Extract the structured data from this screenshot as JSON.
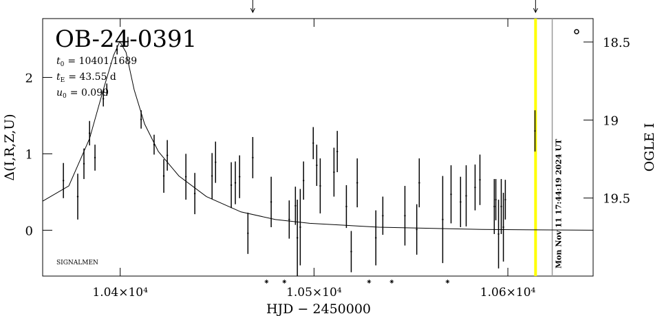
{
  "chart_data": {
    "type": "scatter",
    "title": "OB-24-0391",
    "params": [
      {
        "symbol": "t",
        "sub": "0",
        "text": "= 10401.1689"
      },
      {
        "symbol": "t",
        "sub": "E",
        "text": "= 43.55 d"
      },
      {
        "symbol": "u",
        "sub": "0",
        "text": "= 0.099"
      }
    ],
    "note": "SIGNALMEN",
    "timestamp": "Mon Nov 11 17:44:19 2024 UT",
    "xlabel": "HJD − 2450000",
    "ylabel": "Δ(I,R,Z,U)",
    "y2label": "OGLE I",
    "xlim": [
      10360,
      10644
    ],
    "ylim": [
      -0.6,
      2.77
    ],
    "y2lim": [
      18.35,
      20.0
    ],
    "xticks": [
      {
        "value": 10400,
        "label": "1.04×10⁴"
      },
      {
        "value": 10500,
        "label": "1.05×10⁴"
      },
      {
        "value": 10600,
        "label": "1.06×10⁴"
      }
    ],
    "yticks": [
      0,
      1,
      2
    ],
    "y2ticks": [
      18.5,
      19,
      19.5
    ],
    "color": "#000000",
    "x": [
      10370.7,
      10378.1,
      10381.3,
      10384.2,
      10387.0,
      10391.3,
      10393.1,
      10398.4,
      10404.0,
      10410.8,
      10417.5,
      10422.5,
      10424.3,
      10433.9,
      10438.5,
      10447.4,
      10449.2,
      10457.3,
      10459.4,
      10461.6,
      10465.9,
      10468.4,
      10477.9,
      10487.2,
      10490.4,
      10491.4,
      10492.9,
      10494.6,
      10499.6,
      10501.4,
      10503.2,
      10510.3,
      10512.0,
      10516.7,
      10519.2,
      10522.3,
      10531.9,
      10535.5,
      10546.9,
      10553.0,
      10554.3,
      10566.4,
      10570.7,
      10575.6,
      10578.5,
      10583.1,
      10585.6,
      10593.0,
      10593.8,
      10595.2,
      10596.6,
      10597.7,
      10598.7,
      10614.0
    ],
    "values": [
      0.65,
      0.44,
      0.87,
      1.27,
      0.95,
      1.72,
      1.84,
      2.36,
      2.47,
      1.45,
      1.12,
      0.71,
      0.98,
      0.7,
      0.48,
      0.71,
      0.89,
      0.59,
      0.62,
      0.7,
      -0.04,
      0.95,
      0.37,
      0.14,
      0.32,
      -0.1,
      0.04,
      0.65,
      1.14,
      0.85,
      0.58,
      0.76,
      1.03,
      0.31,
      -0.28,
      0.62,
      -0.1,
      0.19,
      0.19,
      0.01,
      0.62,
      0.14,
      0.47,
      0.37,
      0.45,
      0.56,
      0.66,
      0.31,
      0.4,
      -0.05,
      0.31,
      0.04,
      0.4,
      1.3
    ],
    "errors": [
      0.23,
      0.3,
      0.2,
      0.16,
      0.17,
      0.1,
      0.08,
      0.06,
      0.06,
      0.12,
      0.13,
      0.22,
      0.2,
      0.3,
      0.27,
      0.3,
      0.27,
      0.3,
      0.28,
      0.28,
      0.27,
      0.27,
      0.33,
      0.25,
      0.25,
      0.5,
      0.5,
      0.25,
      0.21,
      0.27,
      0.36,
      0.32,
      0.27,
      0.28,
      0.27,
      0.32,
      0.36,
      0.25,
      0.39,
      0.33,
      0.32,
      0.57,
      0.38,
      0.33,
      0.4,
      0.3,
      0.33,
      0.36,
      0.27,
      0.45,
      0.36,
      0.45,
      0.26,
      0.27
    ],
    "model": {
      "x": [
        10360,
        10373.5,
        10384.2,
        10391.3,
        10396.6,
        10399.8,
        10403,
        10407.2,
        10412.6,
        10419.7,
        10430.3,
        10444.5,
        10462.3,
        10480.1,
        10497.8,
        10533.4,
        10586.6,
        10644.2
      ],
      "values": [
        0.38,
        0.58,
        1.2,
        1.84,
        2.29,
        2.47,
        2.33,
        1.84,
        1.39,
        1.03,
        0.71,
        0.44,
        0.24,
        0.14,
        0.09,
        0.04,
        0.01,
        0
      ]
    },
    "vlines": [
      {
        "x": 10614.3,
        "color": "#ffff00"
      },
      {
        "x": 10622.9,
        "color": "#999999"
      }
    ],
    "arrows_x": [
      10468.4,
      10614.3
    ],
    "markers_x": [
      10475.5,
      10484.7,
      10528.4,
      10540.1,
      10568.9
    ]
  }
}
